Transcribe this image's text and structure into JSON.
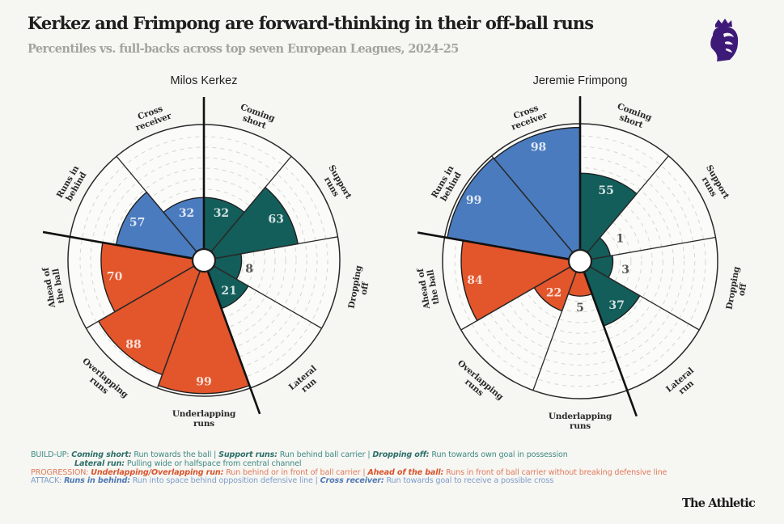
{
  "header": {
    "title": "Kerkez and Frimpong are forward-thinking in their off-ball runs",
    "subtitle": "Percentiles vs. full-backs across top seven European Leagues, 2024-25",
    "logo_icon": "premier-league-lion-icon"
  },
  "colors": {
    "build_up": "#135e5b",
    "progression": "#e3552b",
    "attack": "#4a7bbf",
    "background": "#f6f6f2"
  },
  "chart_data": [
    {
      "type": "radar-polar-bar",
      "title": "Milos Kerkez",
      "scale": [
        0,
        100
      ],
      "categories": [
        "Coming short",
        "Support runs",
        "Dropping off",
        "Lateral run",
        "Underlapping runs",
        "Overlapping runs",
        "Ahead of the ball",
        "Runs in behind",
        "Cross receiver"
      ],
      "groups": [
        "build_up",
        "build_up",
        "build_up",
        "build_up",
        "progression",
        "progression",
        "progression",
        "attack",
        "attack"
      ],
      "values": [
        32,
        63,
        8,
        21,
        99,
        88,
        70,
        57,
        32
      ]
    },
    {
      "type": "radar-polar-bar",
      "title": "Jeremie Frimpong",
      "scale": [
        0,
        100
      ],
      "categories": [
        "Coming short",
        "Support runs",
        "Dropping off",
        "Lateral run",
        "Underlapping runs",
        "Overlapping runs",
        "Ahead of the ball",
        "Runs in behind",
        "Cross receiver"
      ],
      "groups": [
        "build_up",
        "build_up",
        "build_up",
        "build_up",
        "progression",
        "progression",
        "progression",
        "attack",
        "attack"
      ],
      "values": [
        55,
        1,
        3,
        37,
        5,
        22,
        84,
        99,
        98
      ]
    }
  ],
  "legend": {
    "build_up": {
      "prefix": "BUILD-UP: ",
      "items": [
        {
          "term": "Coming short:",
          "desc": " Run towards the ball | "
        },
        {
          "term": "Support runs:",
          "desc": " Run behind ball carrier | "
        },
        {
          "term": "Dropping off:",
          "desc": " Run towards own goal in possession"
        }
      ],
      "line2": {
        "term": "Lateral run:",
        "desc": " Pulling wide or halfspace from central channel"
      }
    },
    "progression": {
      "prefix": "PROGRESSION: ",
      "items": [
        {
          "term": "Underlapping/Overlapping run:",
          "desc": " Run behind or in front of ball carrier | "
        },
        {
          "term": "Ahead of the ball:",
          "desc": " Runs in front of ball carrier without breaking defensive line"
        }
      ]
    },
    "attack": {
      "prefix": "ATTACK: ",
      "items": [
        {
          "term": "Runs in behind:",
          "desc": " Run into space behind opposition defensive line | "
        },
        {
          "term": "Cross receiver:",
          "desc": " Run towards goal to receive a possible cross"
        }
      ]
    }
  },
  "footer": {
    "brand": "The Athletic"
  }
}
